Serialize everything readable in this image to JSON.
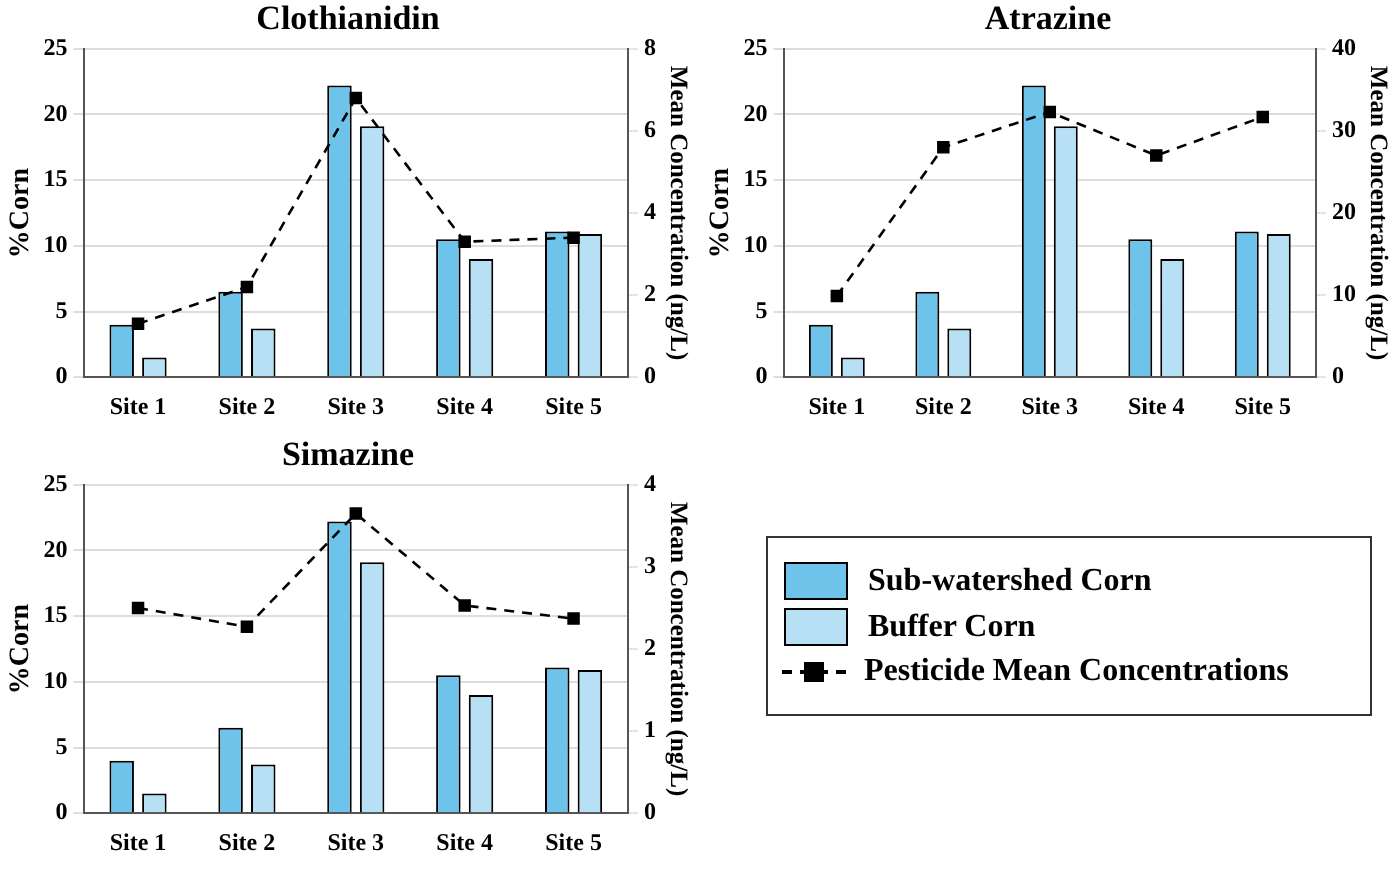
{
  "chart_data": [
    {
      "type": "bar",
      "title": "Clothianidin",
      "ylabel": "%Corn",
      "y2label": "Mean Concentration (ng/L)",
      "categories": [
        "Site 1",
        "Site 2",
        "Site 3",
        "Site 4",
        "Site 5"
      ],
      "ylim": [
        0,
        25
      ],
      "yticks": [
        0,
        5,
        10,
        15,
        20,
        25
      ],
      "y2lim": [
        0,
        8
      ],
      "y2ticks": [
        0,
        2,
        4,
        6,
        8
      ],
      "grid": "y",
      "series": [
        {
          "color": "#6ec3ea",
          "values": [
            4,
            6.5,
            22.2,
            10.5,
            11.1
          ]
        },
        {
          "color": "#b8e0f4",
          "values": [
            1.5,
            3.7,
            19.1,
            9,
            10.9
          ]
        },
        {
          "type": "line",
          "axis": "y2",
          "color": "#000000",
          "marker": "square",
          "line_style": "dashed",
          "values": [
            1.3,
            2.2,
            6.8,
            3.3,
            3.4
          ]
        }
      ]
    },
    {
      "type": "bar",
      "title": "Atrazine",
      "ylabel": "%Corn",
      "y2label": "Mean Concentration (ng/L)",
      "categories": [
        "Site 1",
        "Site 2",
        "Site 3",
        "Site 4",
        "Site 5"
      ],
      "ylim": [
        0,
        25
      ],
      "yticks": [
        0,
        5,
        10,
        15,
        20,
        25
      ],
      "y2lim": [
        0,
        40
      ],
      "y2ticks": [
        0,
        10,
        20,
        30,
        40
      ],
      "grid": "y",
      "series": [
        {
          "color": "#6ec3ea",
          "values": [
            4,
            6.5,
            22.2,
            10.5,
            11.1
          ]
        },
        {
          "color": "#b8e0f4",
          "values": [
            1.5,
            3.7,
            19.1,
            9,
            10.9
          ]
        },
        {
          "type": "line",
          "axis": "y2",
          "color": "#000000",
          "marker": "square",
          "line_style": "dashed",
          "values": [
            9.9,
            28,
            32.3,
            27,
            31.7
          ]
        }
      ]
    },
    {
      "type": "bar",
      "title": "Simazine",
      "ylabel": "%Corn",
      "y2label": "Mean Concentration (ng/L)",
      "categories": [
        "Site 1",
        "Site 2",
        "Site 3",
        "Site 4",
        "Site 5"
      ],
      "ylim": [
        0,
        25
      ],
      "yticks": [
        0,
        5,
        10,
        15,
        20,
        25
      ],
      "y2lim": [
        0,
        4
      ],
      "y2ticks": [
        0,
        1,
        2,
        3,
        4
      ],
      "grid": "y",
      "legend": "right",
      "series": [
        {
          "name": "Sub-watershed Corn",
          "color": "#6ec3ea",
          "values": [
            4,
            6.5,
            22.2,
            10.5,
            11.1
          ]
        },
        {
          "name": "Buffer Corn",
          "color": "#b8e0f4",
          "values": [
            1.5,
            3.7,
            19.1,
            9,
            10.9
          ]
        },
        {
          "name": "Pesticide Mean Concentrations",
          "type": "line",
          "axis": "y2",
          "color": "#000000",
          "marker": "square",
          "line_style": "dashed",
          "values": [
            2.5,
            2.27,
            3.65,
            2.53,
            2.37
          ]
        }
      ]
    }
  ]
}
